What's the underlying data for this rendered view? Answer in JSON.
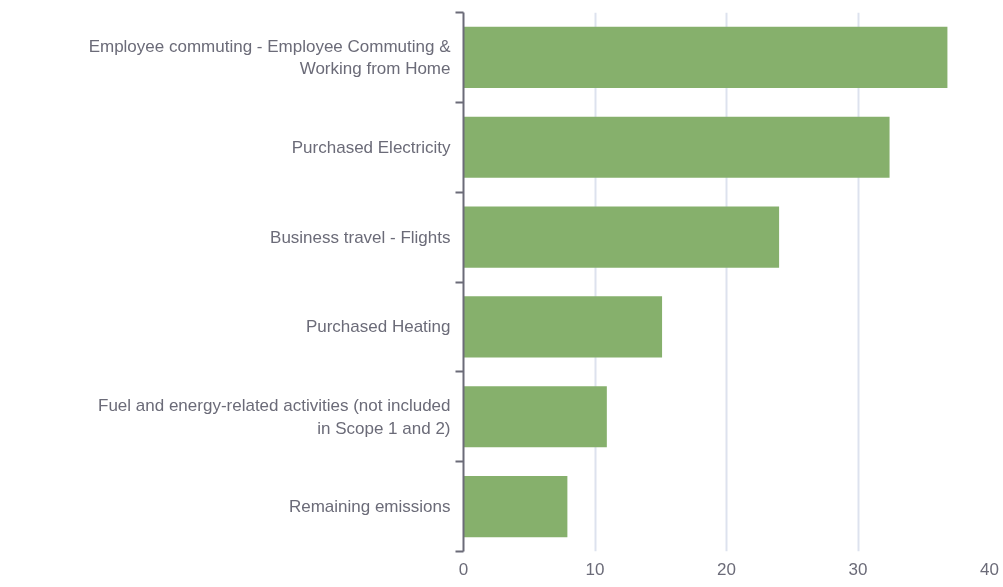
{
  "chart_data": {
    "type": "bar",
    "orientation": "horizontal",
    "categories": [
      "Employee commuting - Employee Commuting & Working from Home",
      "Purchased Electricity",
      "Business travel - Flights",
      "Purchased Heating",
      "Fuel and energy-related activities (not included in Scope 1 and 2)",
      "Remaining emissions"
    ],
    "values": [
      36.8,
      32.4,
      24.0,
      15.1,
      10.9,
      7.9
    ],
    "color": "#86b06c",
    "xlim": [
      0,
      40
    ],
    "xticks": [
      0,
      10,
      20,
      30,
      40
    ],
    "grid": "x"
  }
}
